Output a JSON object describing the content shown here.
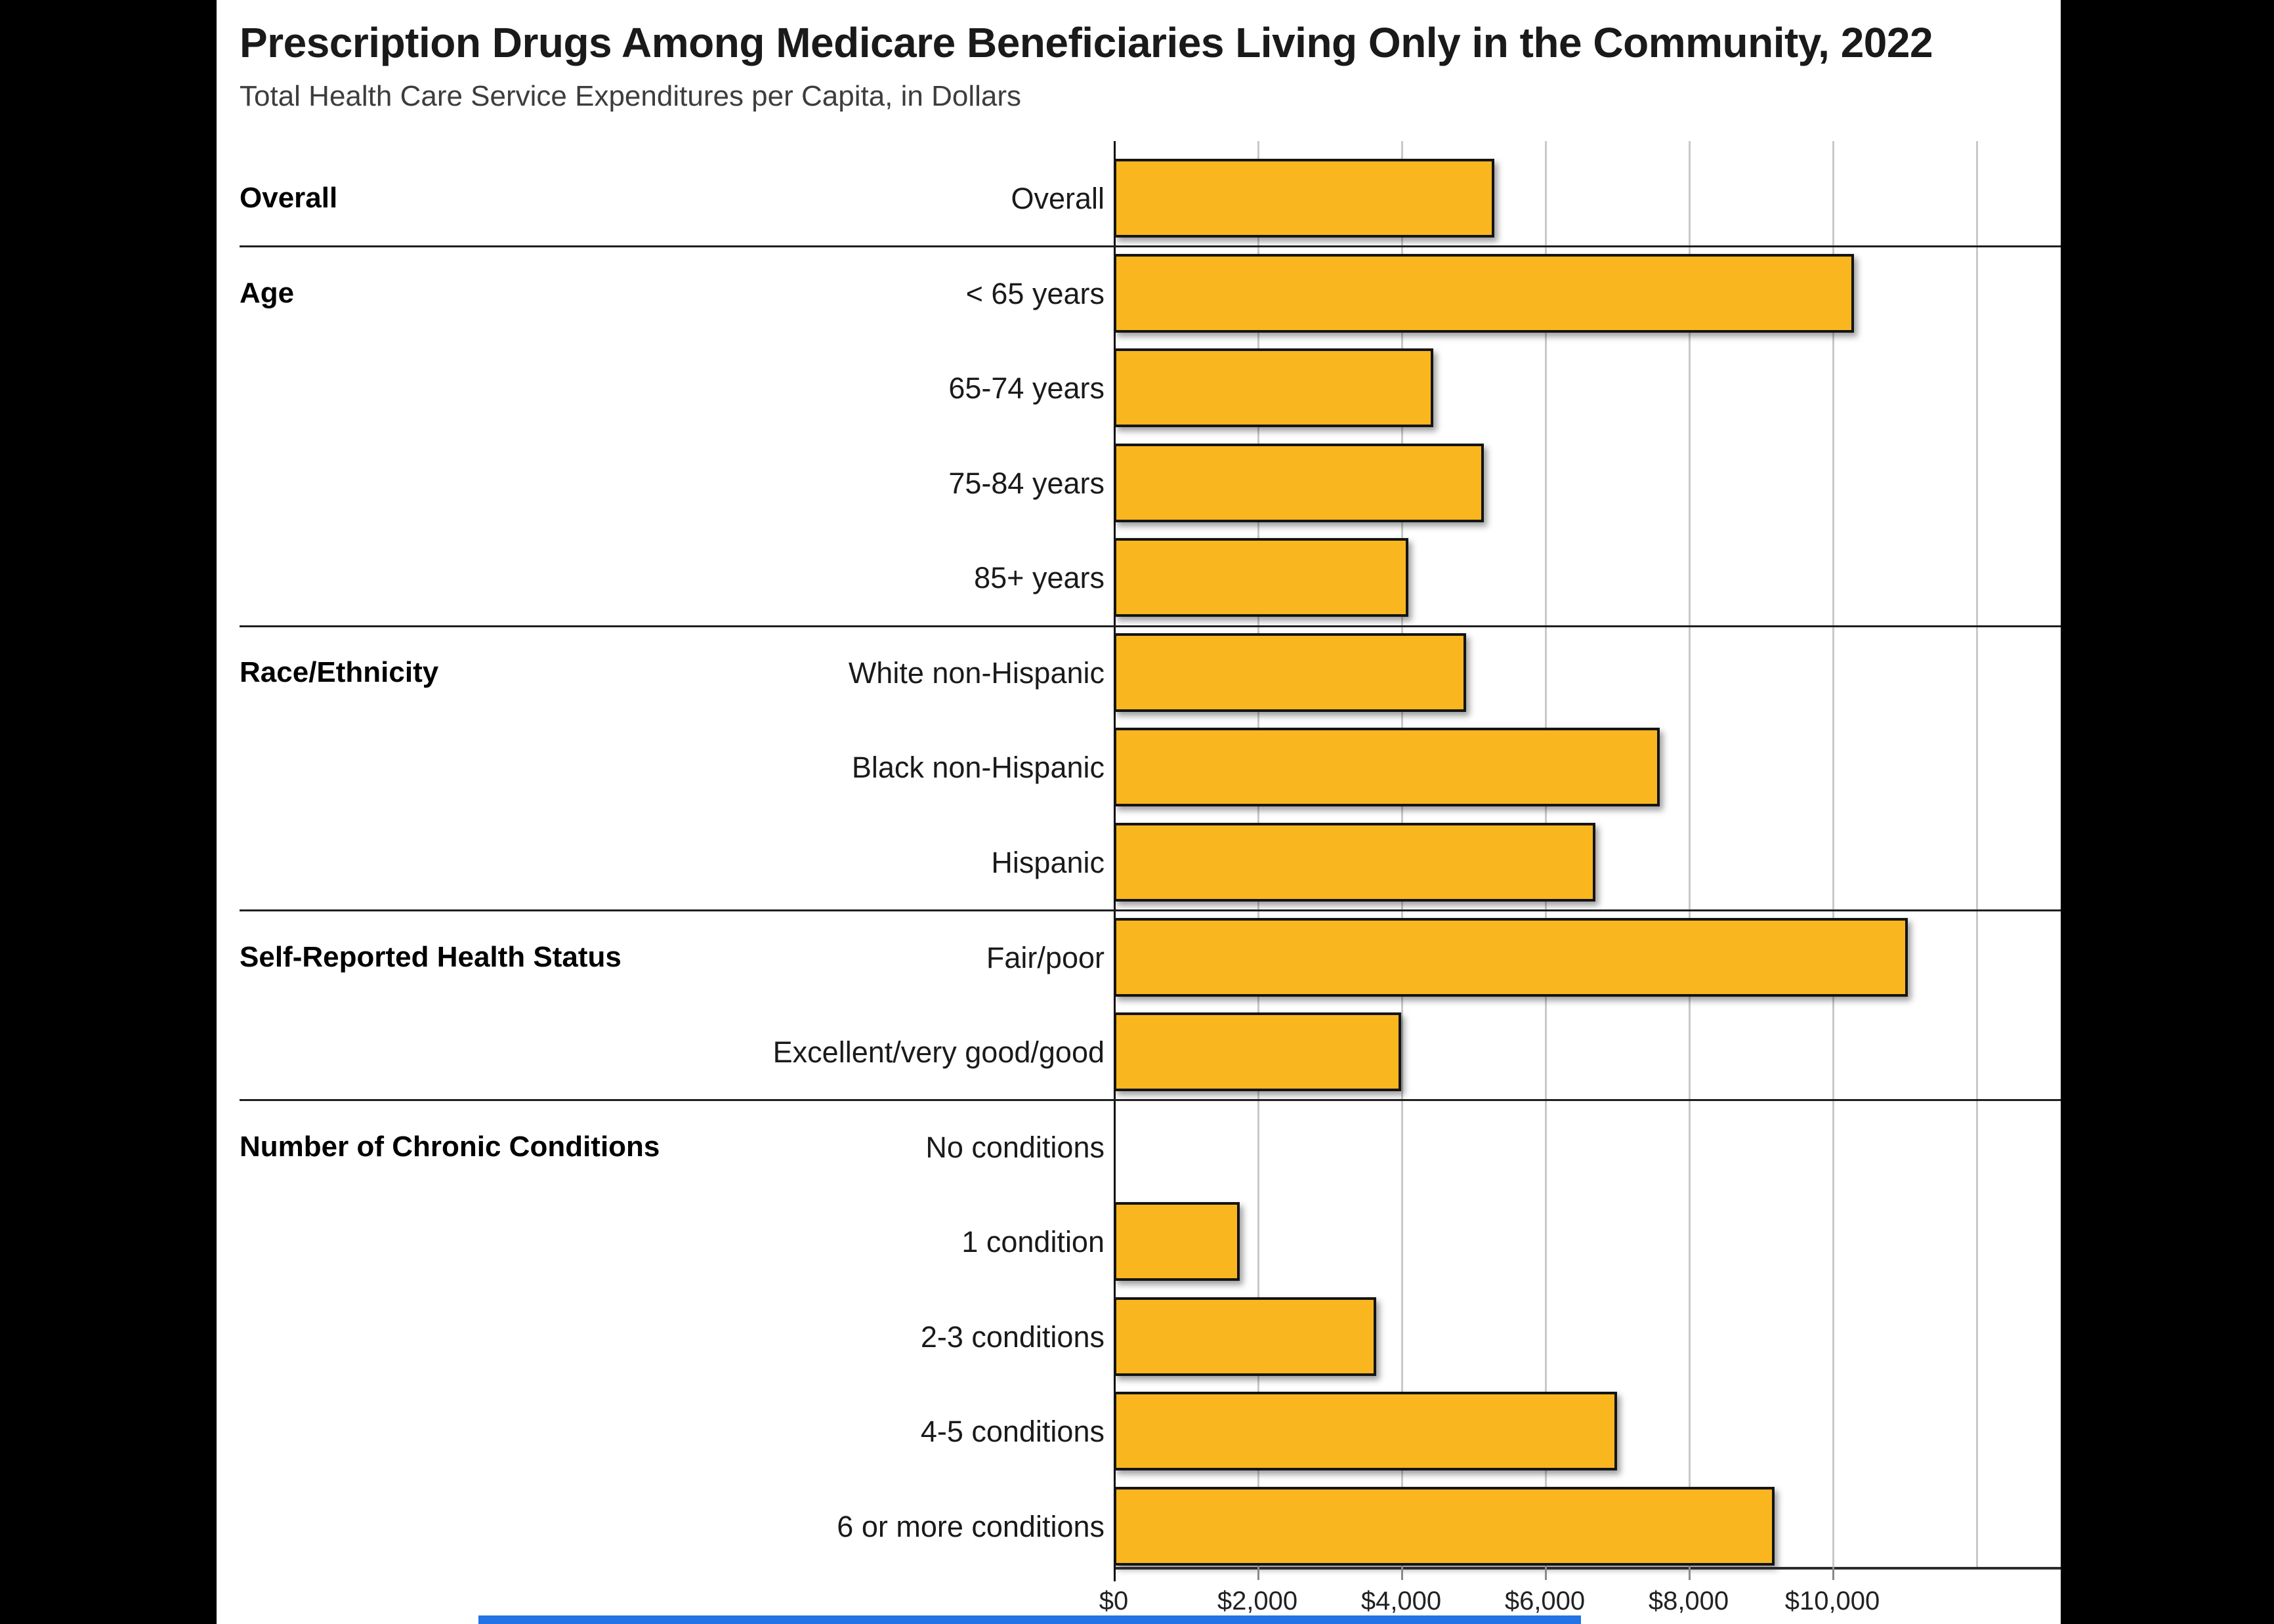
{
  "header": {
    "title": "Prescription Drugs Among Medicare Beneficiaries Living Only in the Community, 2022",
    "subtitle": "Total Health Care Service Expenditures per Capita, in Dollars"
  },
  "chart_data": {
    "type": "bar",
    "orientation": "horizontal",
    "title": "Prescription Drugs Among Medicare Beneficiaries Living Only in the Community, 2022",
    "subtitle": "Total Health Care Service Expenditures per Capita, in Dollars",
    "value_unit": "dollars per capita",
    "xlim": [
      0,
      13180
    ],
    "grid": true,
    "x_ticks": [
      {
        "value": 0,
        "label": "$0"
      },
      {
        "value": 2000,
        "label": "$2,000"
      },
      {
        "value": 4000,
        "label": "$4,000"
      },
      {
        "value": 6000,
        "label": "$6,000"
      },
      {
        "value": 8000,
        "label": "$8,000"
      },
      {
        "value": 10000,
        "label": "$10,000"
      }
    ],
    "unlabeled_gridlines": [
      12000
    ],
    "bar_color": "#FAB61E",
    "bar_border_color": "#141414",
    "groups": [
      {
        "label": "Overall",
        "rows": [
          {
            "label": "Overall",
            "value": 5300
          }
        ]
      },
      {
        "label": "Age",
        "rows": [
          {
            "label": "< 65 years",
            "value": 10300
          },
          {
            "label": "65-74 years",
            "value": 4450
          },
          {
            "label": "75-84 years",
            "value": 5150
          },
          {
            "label": "85+ years",
            "value": 4100
          }
        ]
      },
      {
        "label": "Race/Ethnicity",
        "rows": [
          {
            "label": "White non-Hispanic",
            "value": 4900
          },
          {
            "label": "Black non-Hispanic",
            "value": 7600
          },
          {
            "label": "Hispanic",
            "value": 6700
          }
        ]
      },
      {
        "label": "Self-Reported Health Status",
        "rows": [
          {
            "label": "Fair/poor",
            "value": 11050
          },
          {
            "label": "Excellent/very good/good",
            "value": 4000
          }
        ]
      },
      {
        "label": "Number of Chronic Conditions",
        "rows": [
          {
            "label": "No conditions",
            "value": 0
          },
          {
            "label": "1 condition",
            "value": 1750
          },
          {
            "label": "2-3 conditions",
            "value": 3650
          },
          {
            "label": "4-5 conditions",
            "value": 7000
          },
          {
            "label": "6 or more conditions",
            "value": 9200
          }
        ]
      }
    ]
  },
  "decor": {
    "letterbox_color": "#000000",
    "bottom_strip_color": "#2273e6"
  }
}
